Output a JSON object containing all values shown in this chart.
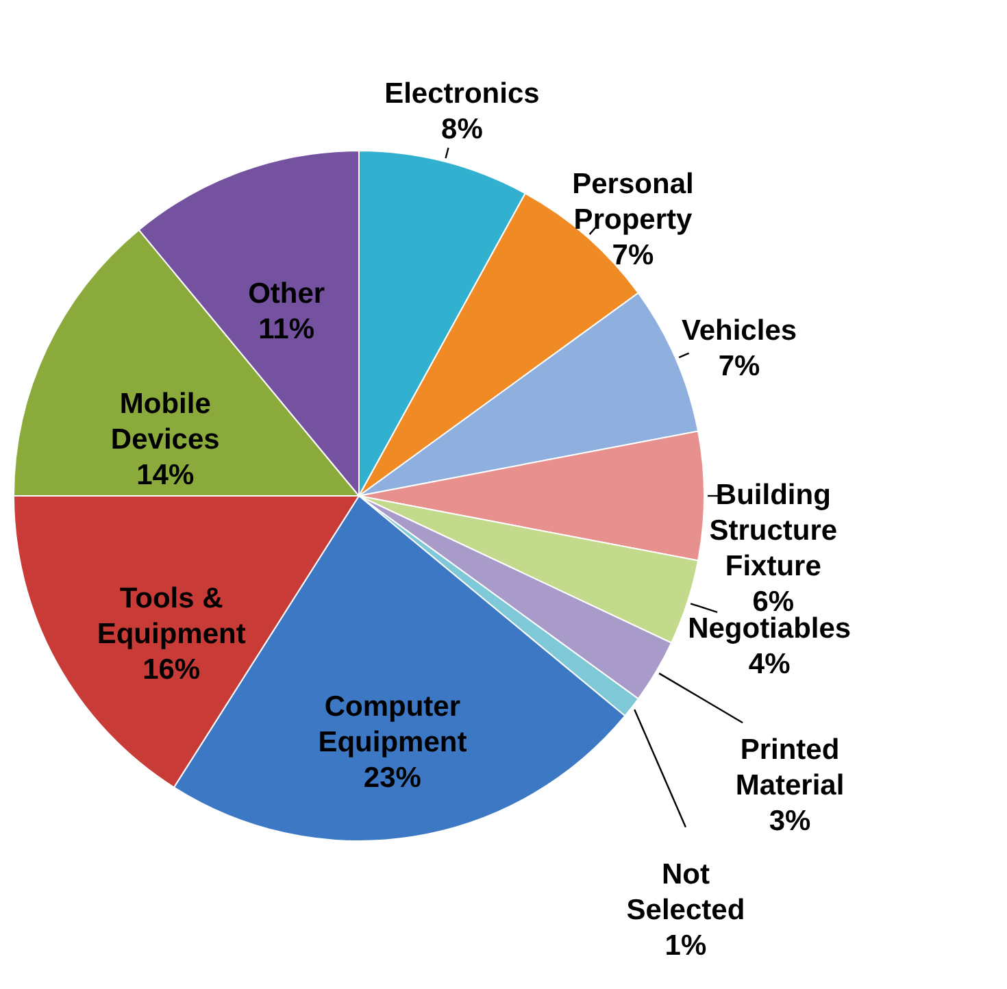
{
  "chart_data": {
    "type": "pie",
    "categories": [
      "Electronics",
      "Personal Property",
      "Vehicles",
      "Building Structure Fixture",
      "Negotiables",
      "Printed Material",
      "Not Selected",
      "Computer Equipment",
      "Tools & Equipment",
      "Mobile Devices",
      "Other"
    ],
    "values": [
      8,
      7,
      7,
      6,
      4,
      3,
      1,
      23,
      16,
      14,
      11
    ],
    "value_labels": [
      "8%",
      "7%",
      "7%",
      "6%",
      "4%",
      "3%",
      "1%",
      "23%",
      "16%",
      "14%",
      "11%"
    ],
    "colors": [
      "#31b0cf",
      "#f08a24",
      "#8fb0de",
      "#e8908e",
      "#c3d98c",
      "#a99bc9",
      "#7fc8d8",
      "#3d78c4",
      "#c83b37",
      "#8aab3c",
      "#7452a0"
    ]
  }
}
